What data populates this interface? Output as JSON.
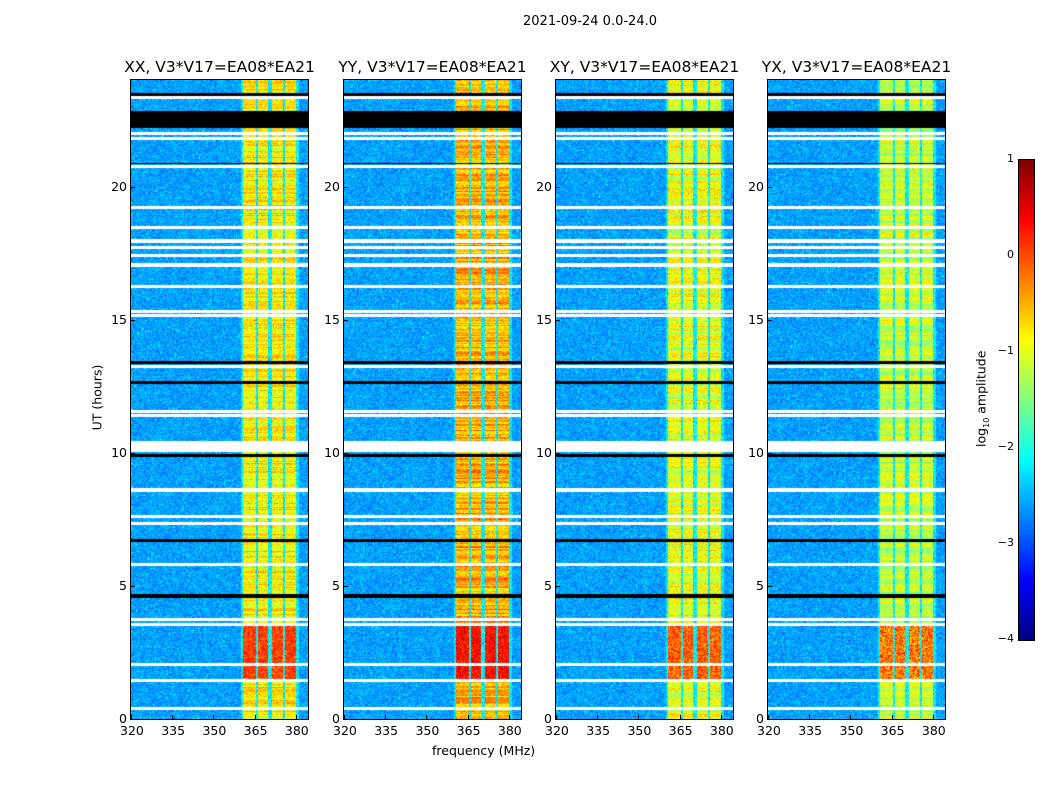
{
  "suptitle": "2021-09-24 0.0-24.0",
  "chart_data": [
    {
      "type": "heatmap",
      "title": "XX, V3*V17=EA08*EA21",
      "xlabel": "",
      "ylabel": "UT (hours)",
      "xlim": [
        320,
        384.4
      ],
      "ylim": [
        0,
        24
      ],
      "xticks": [
        "320",
        "335",
        "350",
        "365",
        "380"
      ],
      "yticks": [
        "0",
        "5",
        "10",
        "15",
        "20"
      ],
      "band_scale": 1.0
    },
    {
      "type": "heatmap",
      "title": "YY, V3*V17=EA08*EA21",
      "xlabel": "frequency (MHz)",
      "ylabel": "",
      "xlim": [
        320,
        384.4
      ],
      "ylim": [
        0,
        24
      ],
      "xticks": [
        "320",
        "335",
        "350",
        "365",
        "380"
      ],
      "yticks": [
        "0",
        "5",
        "10",
        "15",
        "20"
      ],
      "band_scale": 1.1
    },
    {
      "type": "heatmap",
      "title": "XY, V3*V17=EA08*EA21",
      "xlabel": "",
      "ylabel": "",
      "xlim": [
        320,
        384.4
      ],
      "ylim": [
        0,
        24
      ],
      "xticks": [
        "320",
        "335",
        "350",
        "365",
        "380"
      ],
      "yticks": [
        "0",
        "5",
        "10",
        "15",
        "20"
      ],
      "band_scale": 0.95
    },
    {
      "type": "heatmap",
      "title": "YX, V3*V17=EA08*EA21",
      "xlabel": "",
      "ylabel": "",
      "xlim": [
        320,
        384.4
      ],
      "ylim": [
        0,
        24
      ],
      "xticks": [
        "320",
        "335",
        "350",
        "365",
        "380"
      ],
      "yticks": [
        "0",
        "5",
        "10",
        "15",
        "20"
      ],
      "band_scale": 0.9
    }
  ],
  "rfi_bands_mhz": [
    [
      360.7,
      365.5
    ],
    [
      366.2,
      369.8
    ],
    [
      371.3,
      375.3
    ],
    [
      376,
      380
    ]
  ],
  "flagged_white_hours": [
    0.4,
    1.45,
    2.05,
    3.55,
    3.75,
    5.8,
    7.35,
    7.6,
    8.6,
    10.1,
    10.25,
    10.4,
    11.4,
    11.55,
    13.25,
    15.15,
    15.3,
    16.25,
    17.05,
    17.4,
    17.7,
    17.95,
    18.45,
    19.2,
    20.75,
    21.8,
    22.0,
    23.35
  ],
  "black_bands_hours": [
    [
      22.2,
      22.85
    ],
    [
      4.55,
      4.7
    ],
    [
      13.35,
      13.45
    ],
    [
      12.6,
      12.7
    ],
    [
      9.85,
      9.95
    ],
    [
      6.65,
      6.75
    ],
    [
      20.85,
      20.9
    ],
    [
      23.4,
      23.5
    ]
  ],
  "strong_hours": [
    1.5,
    3.5
  ],
  "colorbar": {
    "label": "log10 amplitude",
    "label_base": "log",
    "label_sub": "10",
    "label_rest": " amplitude",
    "ticks": [
      "1",
      "0",
      "−1",
      "−2",
      "−3",
      "−4"
    ],
    "range": [
      -4,
      1
    ]
  }
}
